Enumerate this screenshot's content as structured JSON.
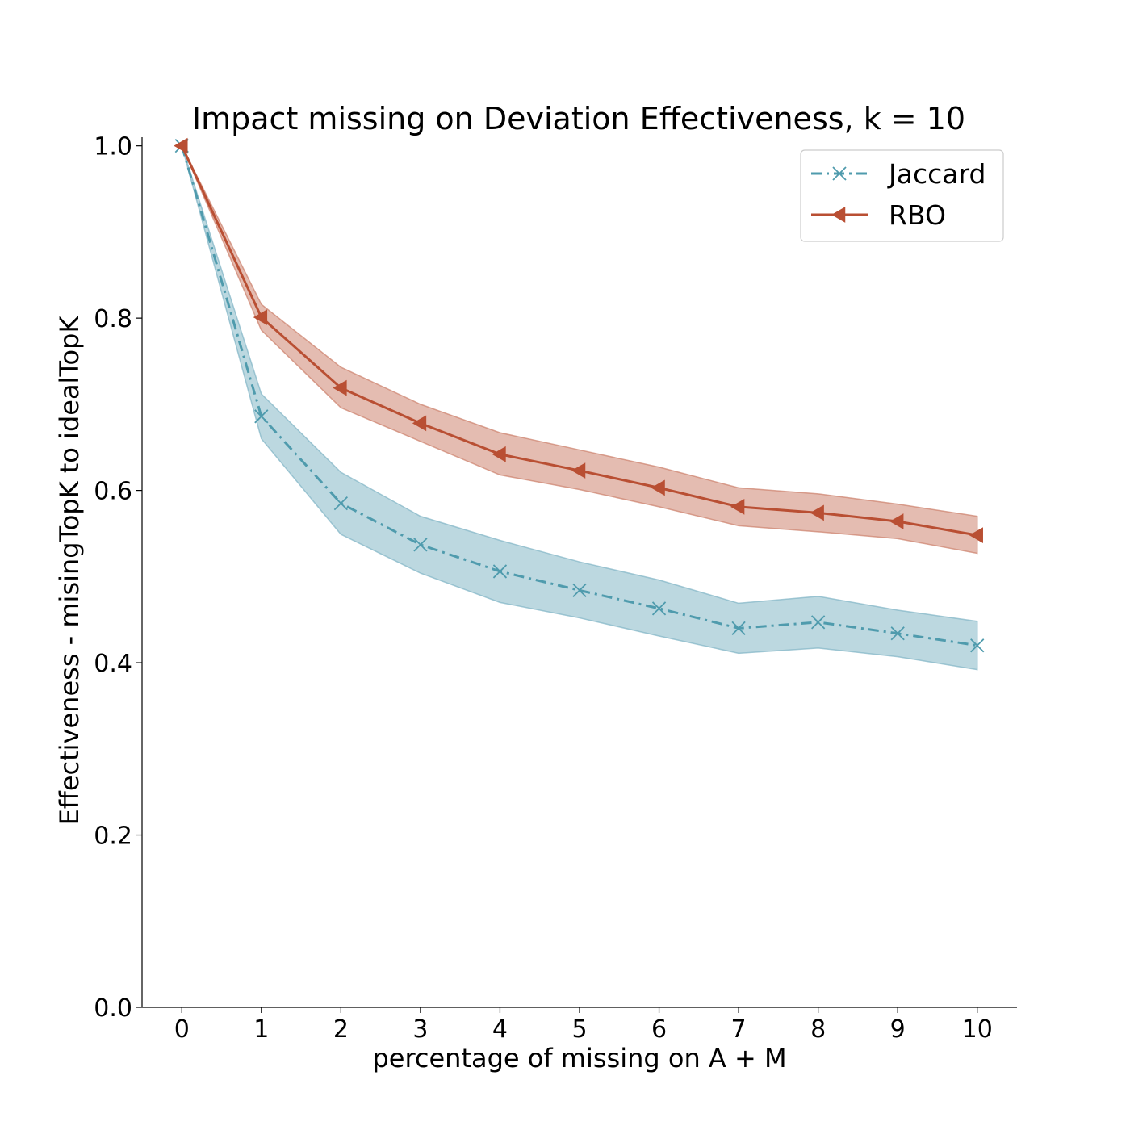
{
  "chart_data": {
    "type": "line",
    "title": "Impact missing on Deviation Effectiveness, k = 10",
    "xlabel": "percentage of missing on A + M",
    "ylabel": "Effectiveness - misingTopK to idealTopK",
    "x": [
      0,
      1,
      2,
      3,
      4,
      5,
      6,
      7,
      8,
      9,
      10
    ],
    "xlim": [
      -0.5,
      10.5
    ],
    "ylim": [
      0.0,
      1.01
    ],
    "xticks": [
      "0",
      "1",
      "2",
      "3",
      "4",
      "5",
      "6",
      "7",
      "8",
      "9",
      "10"
    ],
    "yticks": [
      "0.0",
      "0.2",
      "0.4",
      "0.6",
      "0.8",
      "1.0"
    ],
    "grid": false,
    "legend_position": "top-right",
    "series": [
      {
        "name": "Jaccard",
        "color": "#4f9bad",
        "band_color": "#7fb4c4",
        "line_style": "dash-dot",
        "marker": "x",
        "values": [
          1.0,
          0.686,
          0.585,
          0.537,
          0.506,
          0.484,
          0.463,
          0.44,
          0.447,
          0.434,
          0.42
        ],
        "lower": [
          1.0,
          0.66,
          0.549,
          0.504,
          0.47,
          0.452,
          0.431,
          0.411,
          0.417,
          0.407,
          0.392
        ],
        "upper": [
          1.0,
          0.712,
          0.621,
          0.57,
          0.542,
          0.517,
          0.496,
          0.469,
          0.477,
          0.461,
          0.448
        ]
      },
      {
        "name": "RBO",
        "color": "#b94f33",
        "band_color": "#cc7f6a",
        "line_style": "solid",
        "marker": "triangle-left",
        "values": [
          1.0,
          0.801,
          0.719,
          0.678,
          0.642,
          0.623,
          0.603,
          0.581,
          0.574,
          0.564,
          0.548
        ],
        "lower": [
          1.0,
          0.786,
          0.696,
          0.657,
          0.618,
          0.601,
          0.581,
          0.559,
          0.552,
          0.544,
          0.527
        ],
        "upper": [
          1.0,
          0.816,
          0.743,
          0.7,
          0.667,
          0.647,
          0.627,
          0.603,
          0.596,
          0.584,
          0.57
        ]
      }
    ]
  }
}
